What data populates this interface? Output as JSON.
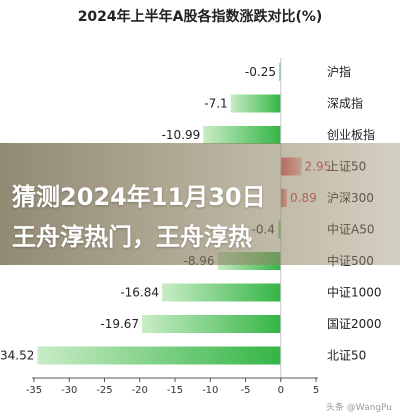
{
  "chart_data": {
    "type": "bar",
    "orientation": "horizontal",
    "title": "2024年上半年A股各指数涨跌对比(%)",
    "categories": [
      "沪指",
      "深成指",
      "创业板指",
      "上证50",
      "沪深300",
      "中证A50",
      "中证500",
      "中证1000",
      "国证2000",
      "北证50"
    ],
    "values": [
      -0.25,
      -7.1,
      -10.99,
      2.95,
      0.89,
      -0.4,
      -8.96,
      -16.84,
      -19.67,
      -34.52
    ],
    "value_labels": [
      "-0.25",
      "-7.1",
      "-10.99",
      "2.95",
      "0.89",
      "-0.4",
      "-8.96",
      "-16.84",
      "-19.67",
      "-34.52"
    ],
    "xlim": [
      -35,
      5
    ],
    "xticks": [
      -35,
      -30,
      -25,
      -20,
      -15,
      -10,
      -5,
      0,
      5
    ],
    "colors": {
      "negative": "#3cb84a",
      "positive": "#e8525a"
    }
  },
  "overlay": {
    "line1": "猜测2024年11月30日",
    "line2": "王舟淳热门，王舟淳热"
  },
  "watermark": "头条 @WangPu"
}
